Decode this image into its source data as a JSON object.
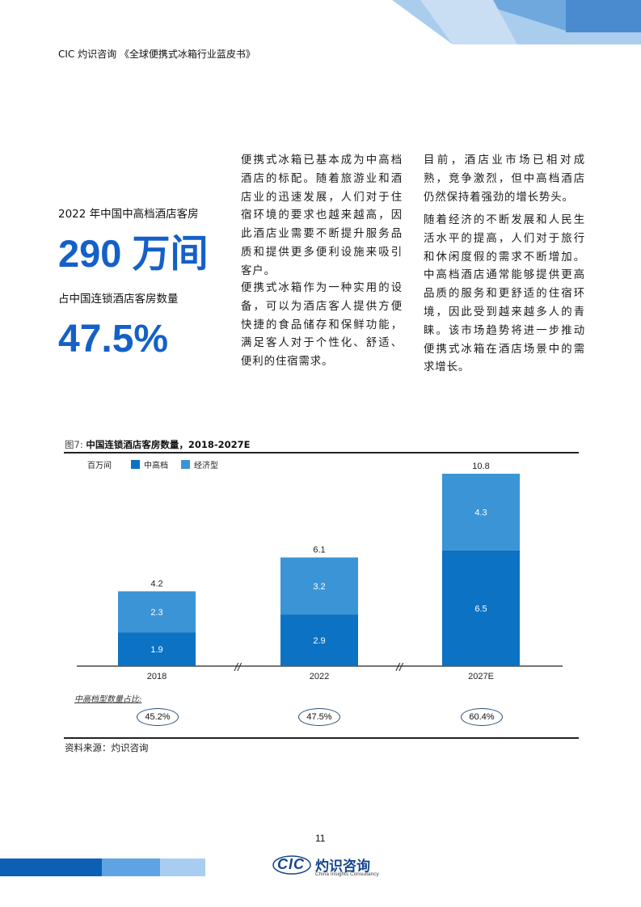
{
  "header": {
    "title": "CIC 灼识咨询 《全球便携式冰箱行业蓝皮书》"
  },
  "stats": {
    "rooms_label": "2022 年中国中高档酒店客房",
    "rooms_value": "290 万间",
    "share_label": "占中国连锁酒店客房数量",
    "share_value": "47.5%"
  },
  "paragraphs": {
    "col1_p1": "便携式冰箱已基本成为中高档酒店的标配。随着旅游业和酒店业的迅速发展，人们对于住宿环境的要求也越来越高，因此酒店业需要不断提升服务品质和提供更多便利设施来吸引客户。",
    "col1_p2": "便携式冰箱作为一种实用的设备，可以为酒店客人提供方便快捷的食品储存和保鲜功能，满足客人对于个性化、舒适、便利的住宿需求。",
    "col2_p1": "目前，酒店业市场已相对成熟，竞争激烈，但中高档酒店仍然保持着强劲的增长势头。",
    "col2_p2": "随着经济的不断发展和人民生活水平的提高，人们对于旅行和休闲度假的需求不断增加。中高档酒店通常能够提供更高品质的服务和更舒适的住宿环境，因此受到越来越多人的青睐。该市场趋势将进一步推动便携式冰箱在酒店场景中的需求增长。"
  },
  "figure": {
    "number": "图7:",
    "title": "中国连锁酒店客房数量，2018-2027E",
    "source": "资料来源：灼识咨询",
    "share_caption": "中高档型数量占比:",
    "shares": [
      "45.2%",
      "47.5%",
      "60.4%"
    ]
  },
  "chart_data": {
    "type": "bar",
    "stacked": true,
    "unit": "百万间",
    "categories": [
      "2018",
      "2022",
      "2027E"
    ],
    "series": [
      {
        "name": "中高档",
        "values": [
          1.9,
          2.9,
          6.5
        ],
        "color": "#0b72c4"
      },
      {
        "name": "经济型",
        "values": [
          2.3,
          3.2,
          4.3
        ],
        "color": "#3b94d6"
      }
    ],
    "totals": [
      "4.2",
      "6.1",
      "10.8"
    ],
    "segment_labels": [
      [
        "1.9",
        "2.3"
      ],
      [
        "2.9",
        "3.2"
      ],
      [
        "6.5",
        "4.3"
      ]
    ],
    "axis_break_symbol": "//",
    "legend_placement": "top-left",
    "ylim": [
      0,
      10.8
    ]
  },
  "footer": {
    "page_number": "11",
    "logo_mark": "CIC",
    "logo_cn": "灼识咨询",
    "logo_en": "China Insights Consultancy"
  },
  "colors": {
    "accent": "#1460c8",
    "dark_blue": "#0b5fb5",
    "mid_blue": "#3b94d6",
    "light_blue": "#a9cdf0"
  }
}
